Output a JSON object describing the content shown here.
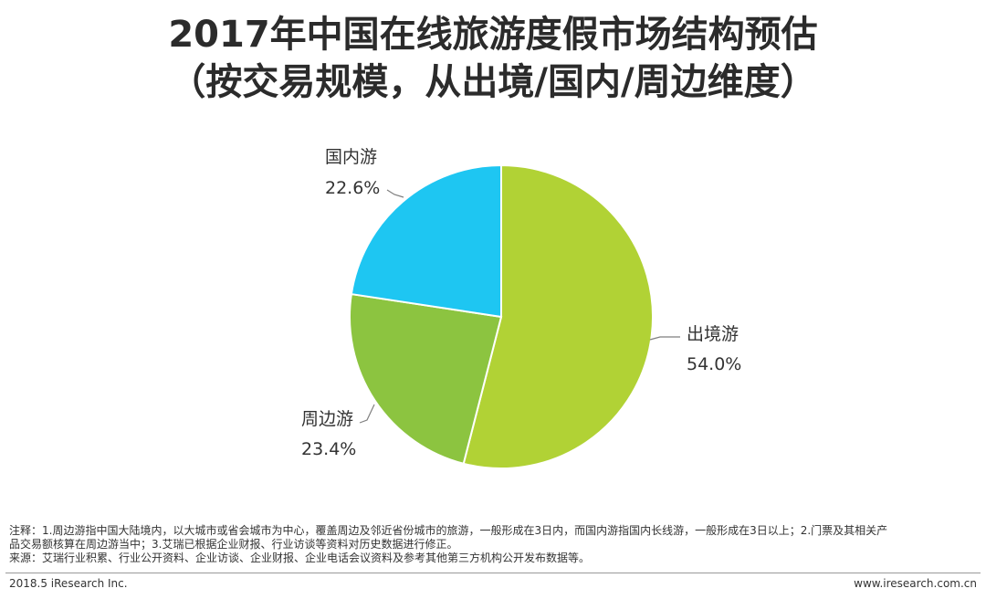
{
  "title": {
    "line1": "2017年中国在线旅游度假市场结构预估",
    "line2": "（按交易规模，从出境/国内/周边维度）"
  },
  "chart_data": {
    "type": "pie",
    "title": "2017年中国在线旅游度假市场结构预估（按交易规模，从出境/国内/周边维度）",
    "slices": [
      {
        "label": "出境游",
        "value": 54.0,
        "display": "54.0%",
        "color": "#b1d235"
      },
      {
        "label": "周边游",
        "value": 23.4,
        "display": "23.4%",
        "color": "#8cc440"
      },
      {
        "label": "国内游",
        "value": 22.6,
        "display": "22.6%",
        "color": "#1ec6f2"
      }
    ],
    "start": "12 o'clock",
    "direction": "clockwise"
  },
  "notes": {
    "line1": "注释：1.周边游指中国大陆境内，以大城市或省会城市为中心，覆盖周边及邻近省份城市的旅游，一般形成在3日内，而国内游指国内长线游，一般形成在3日以上；2.门票及其相关产",
    "line2": "品交易额核算在周边游当中；3.艾瑞已根据企业财报、行业访谈等资料对历史数据进行修正。",
    "source": "来源：艾瑞行业积累、行业公开资料、企业访谈、企业财报、企业电话会议资料及参考其他第三方机构公开发布数据等。"
  },
  "footer": {
    "left": "2018.5 iResearch Inc.",
    "right": "www.iresearch.com.cn"
  }
}
